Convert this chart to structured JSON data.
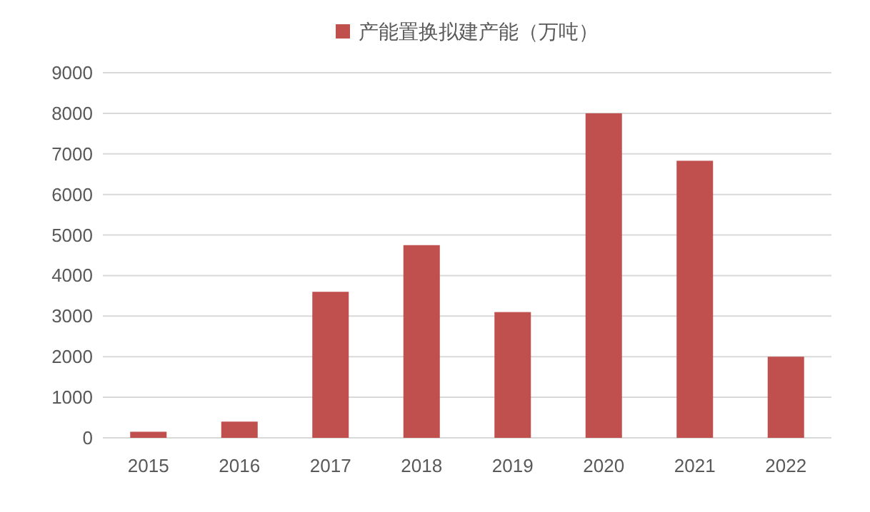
{
  "chart_data": {
    "type": "bar",
    "categories": [
      "2015",
      "2016",
      "2017",
      "2018",
      "2019",
      "2020",
      "2021",
      "2022"
    ],
    "series": [
      {
        "name": "产能置换拟建产能（万吨）",
        "color": "#c0504d",
        "values": [
          150,
          400,
          3600,
          4750,
          3100,
          8000,
          6830,
          2000
        ]
      }
    ],
    "ylim": [
      0,
      9000
    ],
    "yticks": [
      0,
      1000,
      2000,
      3000,
      4000,
      5000,
      6000,
      7000,
      8000,
      9000
    ],
    "grid": "y",
    "legend": "top"
  }
}
